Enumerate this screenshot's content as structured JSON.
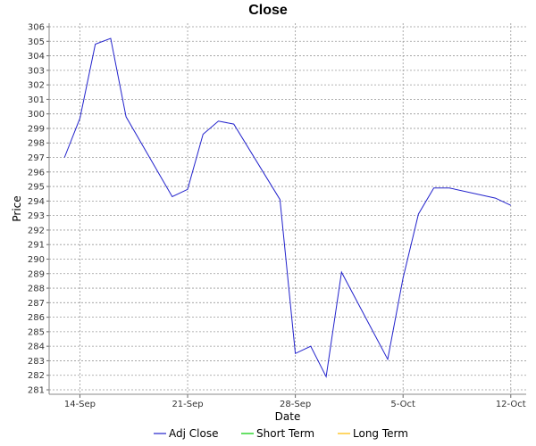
{
  "chart_data": {
    "type": "line",
    "title": "Close",
    "xlabel": "Date",
    "ylabel": "Price",
    "ylim": [
      281,
      306
    ],
    "xlim": [
      "2015-09-12",
      "2015-10-13"
    ],
    "grid": true,
    "legend_position": "bottom",
    "x_ticks": [
      {
        "date": "2015-09-14",
        "label": "14-Sep"
      },
      {
        "date": "2015-09-21",
        "label": "21-Sep"
      },
      {
        "date": "2015-09-28",
        "label": "28-Sep"
      },
      {
        "date": "2015-10-05",
        "label": "5-Oct"
      },
      {
        "date": "2015-10-12",
        "label": "12-Oct"
      }
    ],
    "y_ticks": [
      281,
      282,
      283,
      284,
      285,
      286,
      287,
      288,
      289,
      290,
      291,
      292,
      293,
      294,
      295,
      296,
      297,
      298,
      299,
      300,
      301,
      302,
      303,
      304,
      305,
      306
    ],
    "series": [
      {
        "name": "Adj Close",
        "color": "#2222cc",
        "points": [
          {
            "x": "2015-09-13",
            "y": 297.0
          },
          {
            "x": "2015-09-14",
            "y": 299.7
          },
          {
            "x": "2015-09-15",
            "y": 304.8
          },
          {
            "x": "2015-09-16",
            "y": 305.2
          },
          {
            "x": "2015-09-17",
            "y": 299.8
          },
          {
            "x": "2015-09-20",
            "y": 294.3
          },
          {
            "x": "2015-09-21",
            "y": 294.8
          },
          {
            "x": "2015-09-22",
            "y": 298.6
          },
          {
            "x": "2015-09-23",
            "y": 299.5
          },
          {
            "x": "2015-09-24",
            "y": 299.3
          },
          {
            "x": "2015-09-27",
            "y": 294.1
          },
          {
            "x": "2015-09-28",
            "y": 283.5
          },
          {
            "x": "2015-09-29",
            "y": 284.0
          },
          {
            "x": "2015-09-30",
            "y": 281.9
          },
          {
            "x": "2015-10-01",
            "y": 289.1
          },
          {
            "x": "2015-10-04",
            "y": 283.1
          },
          {
            "x": "2015-10-05",
            "y": 288.7
          },
          {
            "x": "2015-10-06",
            "y": 293.1
          },
          {
            "x": "2015-10-07",
            "y": 294.9
          },
          {
            "x": "2015-10-08",
            "y": 294.9
          },
          {
            "x": "2015-10-11",
            "y": 294.2
          },
          {
            "x": "2015-10-12",
            "y": 293.7
          }
        ]
      },
      {
        "name": "Short Term",
        "color": "#00cc00",
        "points": []
      },
      {
        "name": "Long Term",
        "color": "#ffbb00",
        "points": []
      }
    ]
  }
}
